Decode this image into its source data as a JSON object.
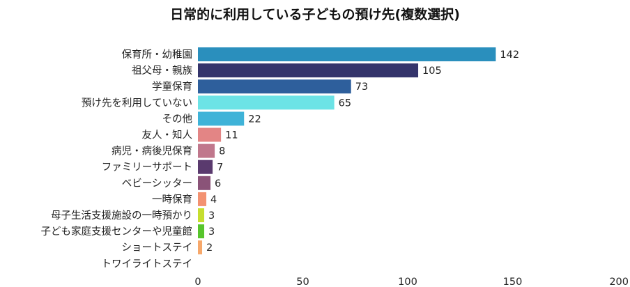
{
  "chart_data": {
    "type": "bar",
    "orientation": "horizontal",
    "title": "日常的に利用している子どもの預け先(複数選択)",
    "categories": [
      "保育所・幼稚園",
      "祖父母・親族",
      "学童保育",
      "預け先を利用していない",
      "その他",
      "友人・知人",
      "病児・病後児保育",
      "ファミリーサポート",
      "ベビーシッター",
      "一時保育",
      "母子生活支援施設の一時預かり",
      "子ども家庭支援センターや児童館",
      "ショートステイ",
      "トワイライトステイ"
    ],
    "values": [
      142,
      105,
      73,
      65,
      22,
      11,
      8,
      7,
      6,
      4,
      3,
      3,
      2,
      0
    ],
    "colors": [
      "#2a8fbd",
      "#34346b",
      "#2e5f9c",
      "#6ce3e6",
      "#3fb3d8",
      "#e38585",
      "#c0778c",
      "#5a3a6e",
      "#8a5378",
      "#f39271",
      "#c6de2f",
      "#57c52c",
      "#f7a86b",
      "#cccccc"
    ],
    "value_labels": [
      "142",
      "105",
      "73",
      "65",
      "22",
      "11",
      "8",
      "7",
      "6",
      "4",
      "3",
      "3",
      "2",
      ""
    ],
    "xlim": [
      0,
      200
    ],
    "xticks": [
      "0",
      "50",
      "100",
      "150",
      "200"
    ],
    "xlabel": "",
    "ylabel": "",
    "grid": false
  }
}
